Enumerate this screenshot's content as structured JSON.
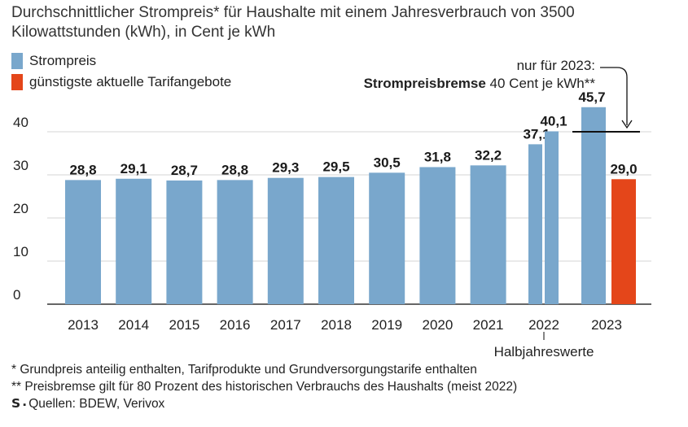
{
  "title": "Durchschnittlicher Strompreis* für Haushalte mit einem Jahresverbrauch von 3500 Kilowattstunden (kWh), in Cent je kWh",
  "legend": [
    {
      "label": "Strompreis",
      "color": "#79a7cc"
    },
    {
      "label": "günstigste aktuelle Tarifangebote",
      "color": "#e4461a"
    }
  ],
  "note": {
    "line1": "nur für 2023:",
    "bold": "Strompreisbremse",
    "rest": " 40 Cent je kWh**"
  },
  "halbjahr_label": "Halbjahreswerte",
  "footnotes": {
    "f1": "* Grundpreis anteilig enthalten, Tarifprodukte und Grundversorgungstarife enthalten",
    "f2": "** Preisbremse gilt für 80 Prozent des historischen Verbrauchs des Haushalts (meist 2022)",
    "logo": "S",
    "source": "Quellen: BDEW, Verivox"
  },
  "chart_data": {
    "type": "bar",
    "ylim": [
      0,
      50
    ],
    "yticks": [
      0,
      10,
      20,
      30,
      40
    ],
    "grid": true,
    "reference_line": {
      "value": 40
    },
    "categories": [
      "2013",
      "2014",
      "2015",
      "2016",
      "2017",
      "2018",
      "2019",
      "2020",
      "2021",
      "2022",
      "2023"
    ],
    "bars": [
      {
        "category": "2013",
        "value": 28.8,
        "label": "28,8",
        "series": "Strompreis"
      },
      {
        "category": "2014",
        "value": 29.1,
        "label": "29,1",
        "series": "Strompreis"
      },
      {
        "category": "2015",
        "value": 28.7,
        "label": "28,7",
        "series": "Strompreis"
      },
      {
        "category": "2016",
        "value": 28.8,
        "label": "28,8",
        "series": "Strompreis"
      },
      {
        "category": "2017",
        "value": 29.3,
        "label": "29,3",
        "series": "Strompreis"
      },
      {
        "category": "2018",
        "value": 29.5,
        "label": "29,5",
        "series": "Strompreis"
      },
      {
        "category": "2019",
        "value": 30.5,
        "label": "30,5",
        "series": "Strompreis"
      },
      {
        "category": "2020",
        "value": 31.8,
        "label": "31,8",
        "series": "Strompreis"
      },
      {
        "category": "2021",
        "value": 32.2,
        "label": "32,2",
        "series": "Strompreis"
      },
      {
        "category": "2022",
        "value": 37.1,
        "label": "37,1",
        "series": "Strompreis"
      },
      {
        "category": "2022",
        "value": 40.1,
        "label": "40,1",
        "series": "Strompreis"
      },
      {
        "category": "2023",
        "value": 45.7,
        "label": "45,7",
        "series": "Strompreis"
      },
      {
        "category": "2023",
        "value": 29.0,
        "label": "29,0",
        "series": "günstigste aktuelle Tarifangebote"
      }
    ]
  }
}
